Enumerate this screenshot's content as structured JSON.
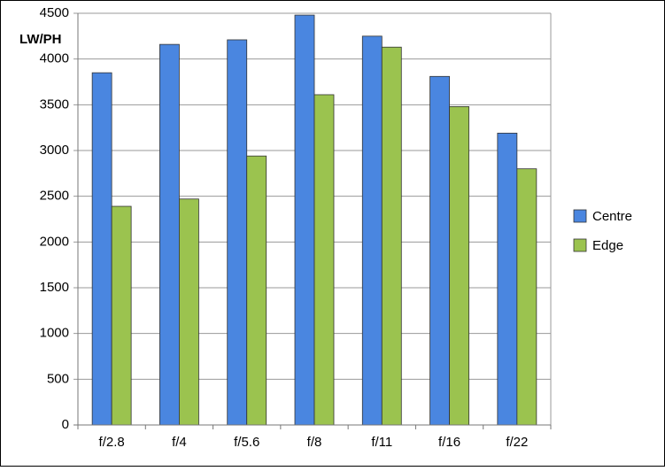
{
  "chart_data": {
    "type": "bar",
    "y_label": "LW/PH",
    "categories": [
      "f/2.8",
      "f/4",
      "f/5.6",
      "f/8",
      "f/11",
      "f/16",
      "f/22"
    ],
    "series": [
      {
        "name": "Centre",
        "color": "#4a86e0",
        "values": [
          3850,
          4160,
          4210,
          4480,
          4250,
          3810,
          3190
        ]
      },
      {
        "name": "Edge",
        "color": "#9bc34f",
        "values": [
          2390,
          2470,
          2940,
          3610,
          4130,
          3480,
          2800
        ]
      }
    ],
    "ylim": [
      0,
      4500
    ],
    "yticks": [
      0,
      500,
      1000,
      1500,
      2000,
      2500,
      3000,
      3500,
      4000,
      4500
    ],
    "grid": true,
    "legend": "right"
  }
}
